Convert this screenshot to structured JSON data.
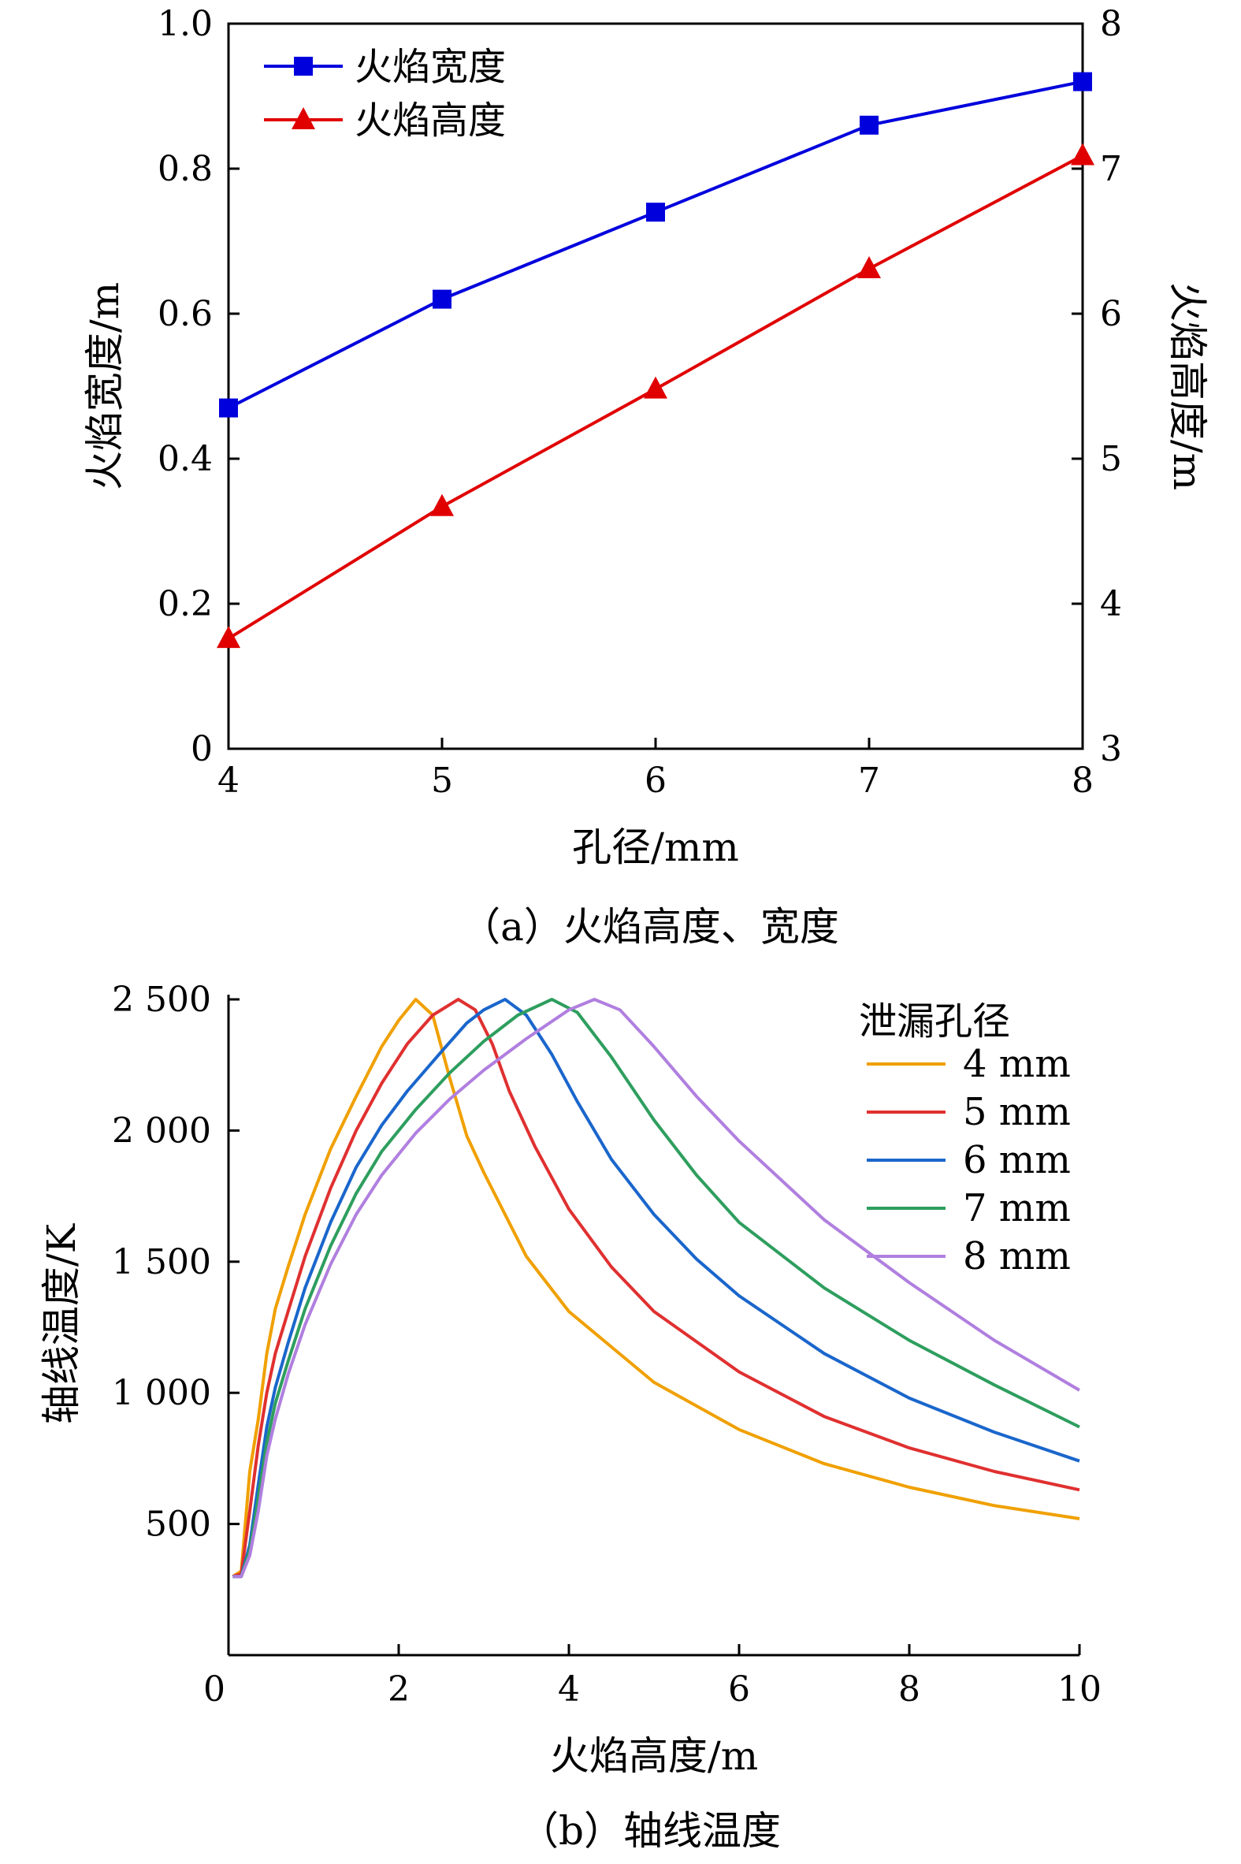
{
  "chart_data": [
    {
      "type": "line",
      "caption": "（a）火焰高度、宽度",
      "xlabel": "孔径/mm",
      "ylabel_left": "火焰宽度/m",
      "ylabel_right": "火焰高度/m",
      "x": [
        4,
        5,
        6,
        7,
        8
      ],
      "xlim": [
        4,
        8
      ],
      "ylim_left": [
        0,
        1.0
      ],
      "ylim_right": [
        3,
        8
      ],
      "xticks": [
        "4",
        "5",
        "6",
        "7",
        "8"
      ],
      "yticks_left": [
        "0",
        "0.2",
        "0.4",
        "0.6",
        "0.8",
        "1.0"
      ],
      "yticks_right": [
        "3",
        "4",
        "5",
        "6",
        "7",
        "8"
      ],
      "legend_position": "top-left",
      "grid": false,
      "series": [
        {
          "name": "火焰宽度",
          "axis": "left",
          "values": [
            0.47,
            0.62,
            0.74,
            0.86,
            0.92
          ],
          "color": "#0000dd",
          "marker": "square"
        },
        {
          "name": "火焰高度",
          "axis": "right",
          "values": [
            3.76,
            4.67,
            5.48,
            6.31,
            7.09
          ],
          "color": "#e00000",
          "marker": "triangle"
        }
      ]
    },
    {
      "type": "line",
      "caption": "（b）轴线温度",
      "xlabel": "火焰高度/m",
      "ylabel": "轴线温度/K",
      "xlim": [
        0,
        10
      ],
      "ylim": [
        0,
        2500
      ],
      "xticks": [
        "0",
        "2",
        "4",
        "6",
        "8",
        "10"
      ],
      "yticks": [
        "500",
        "1 000",
        "1 500",
        "2 000",
        "2 500"
      ],
      "legend_title": "泄漏孔径",
      "legend_position": "top-right",
      "grid": false,
      "series": [
        {
          "name": "4 mm",
          "color": "#f0a000",
          "points": [
            [
              0.05,
              300
            ],
            [
              0.15,
              320
            ],
            [
              0.25,
              700
            ],
            [
              0.35,
              900
            ],
            [
              0.45,
              1150
            ],
            [
              0.55,
              1320
            ],
            [
              0.7,
              1480
            ],
            [
              0.9,
              1680
            ],
            [
              1.2,
              1930
            ],
            [
              1.5,
              2130
            ],
            [
              1.8,
              2320
            ],
            [
              2.0,
              2420
            ],
            [
              2.2,
              2500
            ],
            [
              2.4,
              2440
            ],
            [
              2.6,
              2200
            ],
            [
              2.8,
              1980
            ],
            [
              3.0,
              1840
            ],
            [
              3.5,
              1520
            ],
            [
              4.0,
              1310
            ],
            [
              5.0,
              1040
            ],
            [
              6.0,
              860
            ],
            [
              7.0,
              730
            ],
            [
              8.0,
              640
            ],
            [
              9.0,
              570
            ],
            [
              10.0,
              520
            ]
          ]
        },
        {
          "name": "5 mm",
          "color": "#e03030",
          "points": [
            [
              0.05,
              300
            ],
            [
              0.15,
              310
            ],
            [
              0.25,
              550
            ],
            [
              0.35,
              800
            ],
            [
              0.45,
              1000
            ],
            [
              0.55,
              1150
            ],
            [
              0.7,
              1310
            ],
            [
              0.9,
              1520
            ],
            [
              1.2,
              1780
            ],
            [
              1.5,
              2000
            ],
            [
              1.8,
              2180
            ],
            [
              2.1,
              2330
            ],
            [
              2.4,
              2440
            ],
            [
              2.7,
              2500
            ],
            [
              2.9,
              2460
            ],
            [
              3.1,
              2330
            ],
            [
              3.3,
              2150
            ],
            [
              3.6,
              1940
            ],
            [
              4.0,
              1700
            ],
            [
              4.5,
              1480
            ],
            [
              5.0,
              1310
            ],
            [
              6.0,
              1080
            ],
            [
              7.0,
              910
            ],
            [
              8.0,
              790
            ],
            [
              9.0,
              700
            ],
            [
              10.0,
              630
            ]
          ]
        },
        {
          "name": "6 mm",
          "color": "#1a66cc",
          "points": [
            [
              0.05,
              300
            ],
            [
              0.15,
              300
            ],
            [
              0.25,
              420
            ],
            [
              0.35,
              650
            ],
            [
              0.45,
              870
            ],
            [
              0.55,
              1020
            ],
            [
              0.7,
              1190
            ],
            [
              0.9,
              1400
            ],
            [
              1.2,
              1650
            ],
            [
              1.5,
              1860
            ],
            [
              1.8,
              2020
            ],
            [
              2.1,
              2150
            ],
            [
              2.5,
              2300
            ],
            [
              2.8,
              2410
            ],
            [
              3.0,
              2460
            ],
            [
              3.25,
              2500
            ],
            [
              3.5,
              2440
            ],
            [
              3.8,
              2290
            ],
            [
              4.1,
              2110
            ],
            [
              4.5,
              1890
            ],
            [
              5.0,
              1680
            ],
            [
              5.5,
              1510
            ],
            [
              6.0,
              1370
            ],
            [
              7.0,
              1150
            ],
            [
              8.0,
              980
            ],
            [
              9.0,
              850
            ],
            [
              10.0,
              740
            ]
          ]
        },
        {
          "name": "7 mm",
          "color": "#2e9e5e",
          "points": [
            [
              0.05,
              300
            ],
            [
              0.15,
              300
            ],
            [
              0.25,
              400
            ],
            [
              0.35,
              600
            ],
            [
              0.45,
              810
            ],
            [
              0.55,
              960
            ],
            [
              0.7,
              1120
            ],
            [
              0.9,
              1320
            ],
            [
              1.2,
              1560
            ],
            [
              1.5,
              1760
            ],
            [
              1.8,
              1920
            ],
            [
              2.2,
              2080
            ],
            [
              2.6,
              2220
            ],
            [
              3.0,
              2340
            ],
            [
              3.4,
              2440
            ],
            [
              3.8,
              2500
            ],
            [
              4.1,
              2450
            ],
            [
              4.5,
              2280
            ],
            [
              5.0,
              2040
            ],
            [
              5.5,
              1830
            ],
            [
              6.0,
              1650
            ],
            [
              7.0,
              1400
            ],
            [
              8.0,
              1200
            ],
            [
              9.0,
              1030
            ],
            [
              10.0,
              870
            ]
          ]
        },
        {
          "name": "8 mm",
          "color": "#b07fdf",
          "points": [
            [
              0.05,
              300
            ],
            [
              0.15,
              300
            ],
            [
              0.25,
              380
            ],
            [
              0.35,
              550
            ],
            [
              0.45,
              760
            ],
            [
              0.55,
              900
            ],
            [
              0.7,
              1070
            ],
            [
              0.9,
              1260
            ],
            [
              1.2,
              1490
            ],
            [
              1.5,
              1680
            ],
            [
              1.8,
              1830
            ],
            [
              2.2,
              1990
            ],
            [
              2.6,
              2120
            ],
            [
              3.0,
              2230
            ],
            [
              3.5,
              2350
            ],
            [
              4.0,
              2460
            ],
            [
              4.3,
              2500
            ],
            [
              4.6,
              2460
            ],
            [
              5.0,
              2320
            ],
            [
              5.5,
              2130
            ],
            [
              6.0,
              1960
            ],
            [
              7.0,
              1660
            ],
            [
              8.0,
              1420
            ],
            [
              9.0,
              1200
            ],
            [
              10.0,
              1010
            ]
          ]
        }
      ]
    }
  ]
}
